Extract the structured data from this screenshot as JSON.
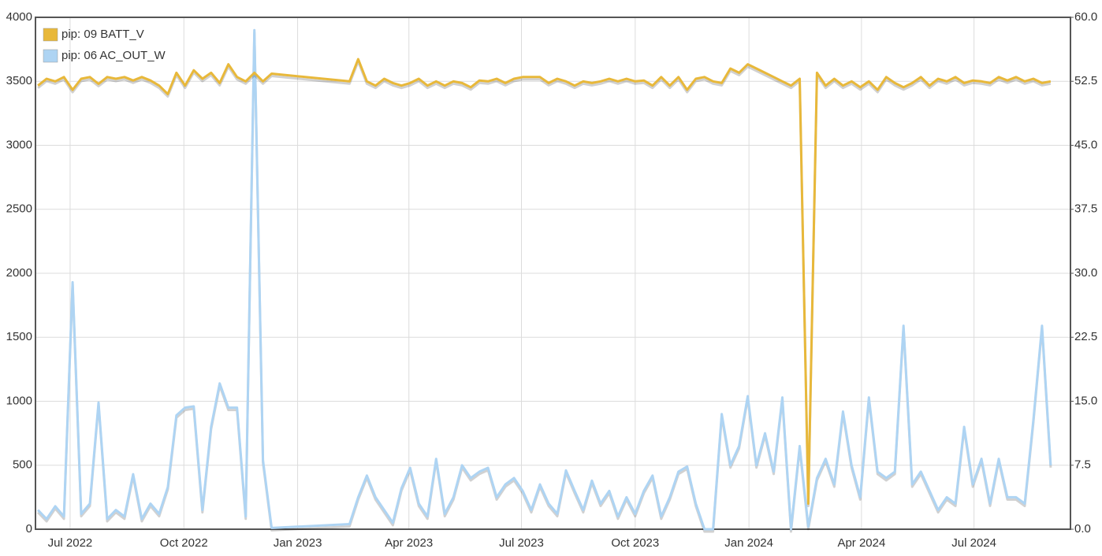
{
  "chart_data": {
    "type": "line",
    "x": [
      "2022-06-05",
      "2022-06-12",
      "2022-06-19",
      "2022-06-26",
      "2022-07-03",
      "2022-07-10",
      "2022-07-17",
      "2022-07-24",
      "2022-07-31",
      "2022-08-07",
      "2022-08-14",
      "2022-08-21",
      "2022-08-28",
      "2022-09-04",
      "2022-09-11",
      "2022-09-18",
      "2022-09-25",
      "2022-10-02",
      "2022-10-09",
      "2022-10-16",
      "2022-10-23",
      "2022-10-30",
      "2022-11-06",
      "2022-11-13",
      "2022-11-20",
      "2022-11-27",
      "2022-12-04",
      "2022-12-11",
      "2023-02-12",
      "2023-02-19",
      "2023-02-26",
      "2023-03-05",
      "2023-03-12",
      "2023-03-19",
      "2023-03-26",
      "2023-04-02",
      "2023-04-09",
      "2023-04-16",
      "2023-04-23",
      "2023-04-30",
      "2023-05-07",
      "2023-05-14",
      "2023-05-21",
      "2023-05-28",
      "2023-06-04",
      "2023-06-11",
      "2023-06-18",
      "2023-06-25",
      "2023-07-02",
      "2023-07-09",
      "2023-07-16",
      "2023-07-23",
      "2023-07-30",
      "2023-08-06",
      "2023-08-13",
      "2023-08-20",
      "2023-08-27",
      "2023-09-03",
      "2023-09-10",
      "2023-09-17",
      "2023-09-24",
      "2023-10-01",
      "2023-10-08",
      "2023-10-15",
      "2023-10-22",
      "2023-10-29",
      "2023-11-05",
      "2023-11-12",
      "2023-11-19",
      "2023-11-26",
      "2023-12-03",
      "2023-12-10",
      "2023-12-17",
      "2023-12-24",
      "2023-12-31",
      "2024-01-07",
      "2024-01-14",
      "2024-01-21",
      "2024-01-28",
      "2024-02-04",
      "2024-02-11",
      "2024-02-18",
      "2024-02-25",
      "2024-03-03",
      "2024-03-10",
      "2024-03-17",
      "2024-03-24",
      "2024-03-31",
      "2024-04-07",
      "2024-04-14",
      "2024-04-21",
      "2024-04-28",
      "2024-05-05",
      "2024-05-12",
      "2024-05-19",
      "2024-05-26",
      "2024-06-02",
      "2024-06-09",
      "2024-06-16",
      "2024-06-23",
      "2024-06-30",
      "2024-07-07",
      "2024-07-14",
      "2024-07-21",
      "2024-07-28",
      "2024-08-04",
      "2024-08-11",
      "2024-08-18",
      "2024-08-25",
      "2024-09-01"
    ],
    "series": [
      {
        "name": "pip: 09 BATT_V",
        "color": "#e8b83a",
        "axis": "y2",
        "values": [
          52.0,
          52.8,
          52.5,
          53.0,
          51.5,
          52.8,
          53.0,
          52.2,
          53.0,
          52.8,
          53.0,
          52.6,
          53.0,
          52.6,
          52.0,
          51.0,
          53.5,
          52.0,
          53.8,
          52.8,
          53.5,
          52.3,
          54.5,
          53.0,
          52.5,
          53.5,
          52.5,
          53.4,
          52.5,
          55.1,
          52.5,
          52.0,
          52.8,
          52.3,
          52.0,
          52.3,
          52.8,
          52.0,
          52.5,
          52.0,
          52.5,
          52.3,
          51.8,
          52.6,
          52.5,
          52.8,
          52.3,
          52.8,
          53.0,
          53.0,
          53.0,
          52.3,
          52.8,
          52.5,
          52.0,
          52.5,
          52.3,
          52.5,
          52.8,
          52.5,
          52.8,
          52.5,
          52.6,
          52.0,
          53.0,
          52.0,
          53.0,
          51.5,
          52.8,
          53.0,
          52.5,
          52.3,
          54.0,
          53.5,
          54.5,
          54.0,
          53.5,
          53.0,
          52.5,
          52.0,
          52.8,
          3.0,
          53.5,
          52.0,
          52.8,
          52.0,
          52.5,
          51.8,
          52.5,
          51.5,
          53.0,
          52.3,
          51.8,
          52.3,
          53.0,
          52.0,
          52.8,
          52.5,
          53.0,
          52.3,
          52.6,
          52.5,
          52.3,
          53.0,
          52.6,
          53.0,
          52.5,
          52.8,
          52.3,
          52.5
        ]
      },
      {
        "name": "pip: 06 AC_OUT_W",
        "color": "#aed4f3",
        "values": [
          150,
          80,
          180,
          100,
          1930,
          120,
          200,
          990,
          80,
          150,
          100,
          430,
          80,
          200,
          120,
          330,
          890,
          950,
          960,
          150,
          800,
          1140,
          950,
          950,
          100,
          3900,
          540,
          10,
          40,
          250,
          420,
          250,
          150,
          50,
          320,
          480,
          200,
          100,
          550,
          120,
          250,
          500,
          400,
          450,
          480,
          250,
          350,
          400,
          300,
          150,
          350,
          200,
          120,
          460,
          300,
          150,
          380,
          200,
          300,
          100,
          250,
          120,
          300,
          420,
          100,
          250,
          450,
          490,
          200,
          0,
          0,
          900,
          500,
          650,
          1040,
          500,
          750,
          450,
          1030,
          0,
          650,
          20,
          400,
          550,
          350,
          920,
          500,
          250,
          1030,
          450,
          400,
          450,
          1590,
          350,
          450,
          300,
          150,
          250,
          200,
          800,
          350,
          550,
          200,
          550,
          250,
          250,
          200,
          850,
          1590,
          500
        ]
      }
    ],
    "xlim": [
      "2022-06-03",
      "2024-09-17"
    ],
    "xticks": [
      {
        "value": "2022-07-01",
        "label": "Jul 2022"
      },
      {
        "value": "2022-10-01",
        "label": "Oct 2022"
      },
      {
        "value": "2023-01-01",
        "label": "Jan 2023"
      },
      {
        "value": "2023-04-01",
        "label": "Apr 2023"
      },
      {
        "value": "2023-07-01",
        "label": "Jul 2023"
      },
      {
        "value": "2023-10-01",
        "label": "Oct 2023"
      },
      {
        "value": "2024-01-01",
        "label": "Jan 2024"
      },
      {
        "value": "2024-04-01",
        "label": "Apr 2024"
      },
      {
        "value": "2024-07-01",
        "label": "Jul 2024"
      }
    ],
    "ylim": [
      0,
      4000
    ],
    "yticks": [
      0,
      500,
      1000,
      1500,
      2000,
      2500,
      3000,
      3500,
      4000
    ],
    "y2lim": [
      0,
      60
    ],
    "y2ticks": [
      {
        "value": 0,
        "label": "0.0"
      },
      {
        "value": 7.5,
        "label": "7.5"
      },
      {
        "value": 15,
        "label": "15.0"
      },
      {
        "value": 22.5,
        "label": "22.5"
      },
      {
        "value": 30,
        "label": "30.0"
      },
      {
        "value": 37.5,
        "label": "37.5"
      },
      {
        "value": 45,
        "label": "45.0"
      },
      {
        "value": 52.5,
        "label": "52.5"
      },
      {
        "value": 60,
        "label": "60.0"
      }
    ],
    "grid": true,
    "legend": "top-left"
  }
}
